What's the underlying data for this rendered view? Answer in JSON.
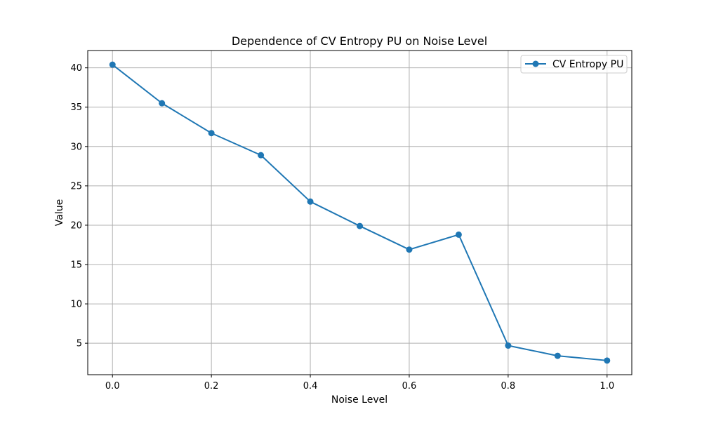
{
  "chart_data": {
    "type": "line",
    "title": "Dependence of CV Entropy PU on Noise Level",
    "xlabel": "Noise Level",
    "ylabel": "Value",
    "xlim": [
      -0.05,
      1.05
    ],
    "ylim": [
      1.0,
      42.2
    ],
    "xticks": [
      0.0,
      0.2,
      0.4,
      0.6,
      0.8,
      1.0
    ],
    "xtick_labels": [
      "0.0",
      "0.2",
      "0.4",
      "0.6",
      "0.8",
      "1.0"
    ],
    "yticks": [
      5,
      10,
      15,
      20,
      25,
      30,
      35,
      40
    ],
    "ytick_labels": [
      "5",
      "10",
      "15",
      "20",
      "25",
      "30",
      "35",
      "40"
    ],
    "grid": true,
    "legend_position": "top-right",
    "x": [
      0.0,
      0.1,
      0.2,
      0.3,
      0.4,
      0.5,
      0.6,
      0.7,
      0.8,
      0.9,
      1.0
    ],
    "series": [
      {
        "name": "CV Entropy PU",
        "color": "#1f77b4",
        "marker": "circle",
        "values": [
          40.4,
          35.5,
          31.7,
          28.9,
          23.0,
          19.9,
          16.9,
          18.8,
          4.7,
          3.4,
          2.8
        ]
      }
    ]
  }
}
